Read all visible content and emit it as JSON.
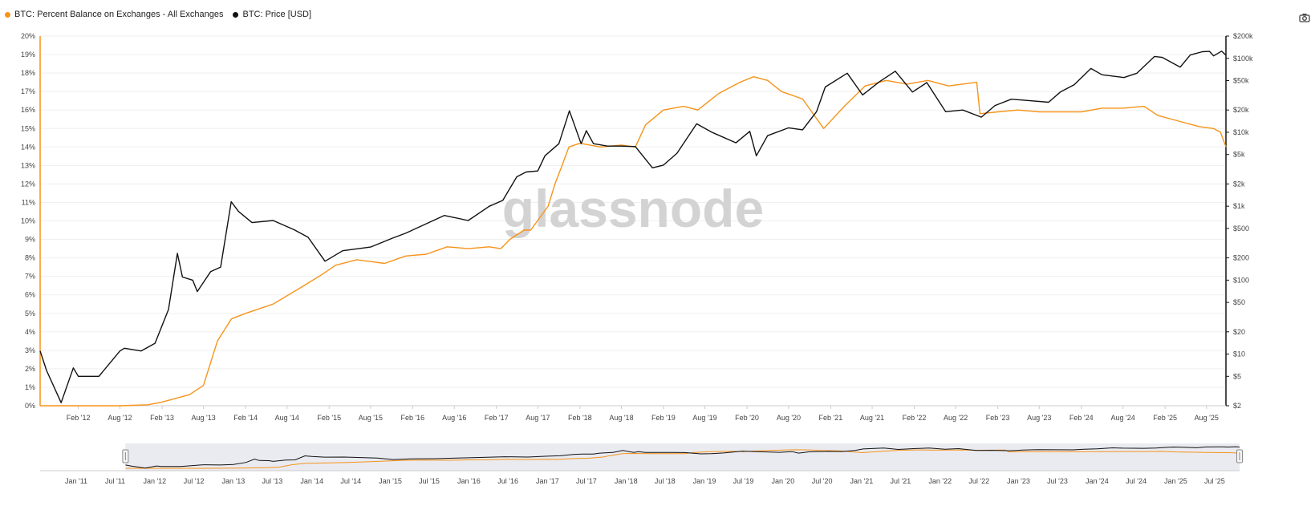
{
  "legend": {
    "series1_label": "BTC: Percent Balance on Exchanges - All Exchanges",
    "series2_label": "BTC: Price [USD]"
  },
  "watermark": "glassnode",
  "colors": {
    "balance": "#f7931a",
    "price": "#111111",
    "grid": "#efefef",
    "navigator_bg": "#e9ebf1"
  },
  "chart_data": {
    "type": "line",
    "title": "",
    "x_tick_labels": [
      "Feb '12",
      "Aug '12",
      "Feb '13",
      "Aug '13",
      "Feb '14",
      "Aug '14",
      "Feb '15",
      "Aug '15",
      "Feb '16",
      "Aug '16",
      "Feb '17",
      "Aug '17",
      "Feb '18",
      "Aug '18",
      "Feb '19",
      "Aug '19",
      "Feb '20",
      "Aug '20",
      "Feb '21",
      "Aug '21",
      "Feb '22",
      "Aug '22",
      "Feb '23",
      "Aug '23",
      "Feb '24",
      "Aug '24",
      "Feb '25",
      "Aug '25"
    ],
    "x_range": [
      "2011-08-18",
      "2025-10-25"
    ],
    "left_axis": {
      "label": "",
      "ylim": [
        0,
        20
      ],
      "tick_labels": [
        "0%",
        "1%",
        "2%",
        "3%",
        "4%",
        "5%",
        "6%",
        "7%",
        "8%",
        "9%",
        "10%",
        "11%",
        "12%",
        "13%",
        "14%",
        "15%",
        "16%",
        "17%",
        "18%",
        "19%",
        "20%"
      ]
    },
    "right_axis": {
      "label": "",
      "scale": "log",
      "ylim": [
        2,
        200000
      ],
      "tick_values": [
        2,
        5,
        10,
        20,
        50,
        100,
        200,
        500,
        1000,
        2000,
        5000,
        10000,
        20000,
        50000,
        100000,
        200000
      ],
      "tick_labels": [
        "$2",
        "$5",
        "$10",
        "$20",
        "$50",
        "$100",
        "$200",
        "$500",
        "$1k",
        "$2k",
        "$5k",
        "$10k",
        "$20k",
        "$50k",
        "$100k",
        "$200k"
      ]
    },
    "grid": true,
    "legend_position": "top-left",
    "series": [
      {
        "name": "BTC: Percent Balance on Exchanges - All Exchanges",
        "axis": "left",
        "color": "#f7931a",
        "x": [
          "2011-08-18",
          "2012-02-01",
          "2012-08-01",
          "2012-12-01",
          "2013-02-01",
          "2013-06-01",
          "2013-08-01",
          "2013-10-01",
          "2013-12-01",
          "2014-02-01",
          "2014-06-01",
          "2014-10-01",
          "2015-01-01",
          "2015-03-01",
          "2015-06-01",
          "2015-08-01",
          "2015-10-01",
          "2016-01-01",
          "2016-04-01",
          "2016-07-01",
          "2016-10-01",
          "2017-01-01",
          "2017-02-20",
          "2017-04-01",
          "2017-06-01",
          "2017-07-01",
          "2017-09-15",
          "2017-10-15",
          "2017-11-15",
          "2017-12-15",
          "2018-02-01",
          "2018-05-01",
          "2018-08-01",
          "2018-10-01",
          "2018-11-15",
          "2019-02-01",
          "2019-05-01",
          "2019-07-01",
          "2019-10-01",
          "2020-01-01",
          "2020-03-01",
          "2020-05-01",
          "2020-07-01",
          "2020-10-01",
          "2021-01-01",
          "2021-04-01",
          "2021-07-01",
          "2021-10-01",
          "2022-01-01",
          "2022-04-01",
          "2022-06-01",
          "2022-07-01",
          "2022-11-01",
          "2022-11-15",
          "2023-02-01",
          "2023-05-01",
          "2023-08-01",
          "2023-11-01",
          "2024-02-01",
          "2024-05-01",
          "2024-08-01",
          "2024-11-01",
          "2025-01-01",
          "2025-04-01",
          "2025-07-01",
          "2025-09-01",
          "2025-10-01",
          "2025-10-25"
        ],
        "y": [
          0.0,
          0.0,
          0.0,
          0.05,
          0.2,
          0.6,
          1.1,
          3.5,
          4.7,
          5.0,
          5.5,
          6.4,
          7.1,
          7.6,
          7.9,
          7.8,
          7.7,
          8.1,
          8.2,
          8.6,
          8.5,
          8.6,
          8.5,
          9.0,
          9.5,
          9.5,
          10.8,
          12.0,
          13.0,
          14.0,
          14.2,
          14.0,
          14.1,
          14.0,
          15.2,
          16.0,
          16.2,
          16.0,
          16.9,
          17.5,
          17.8,
          17.6,
          17.0,
          16.6,
          15.0,
          16.2,
          17.3,
          17.6,
          17.4,
          17.6,
          17.4,
          17.3,
          17.5,
          15.8,
          15.9,
          16.0,
          15.9,
          15.9,
          15.9,
          16.1,
          16.1,
          16.2,
          15.7,
          15.4,
          15.1,
          15.0,
          14.8,
          14.0
        ]
      },
      {
        "name": "BTC: Price [USD]",
        "axis": "right",
        "color": "#111111",
        "x": [
          "2011-08-18",
          "2011-09-15",
          "2011-11-18",
          "2012-01-10",
          "2012-02-01",
          "2012-05-01",
          "2012-08-01",
          "2012-08-20",
          "2012-11-01",
          "2013-01-01",
          "2013-03-01",
          "2013-04-09",
          "2013-05-01",
          "2013-06-15",
          "2013-07-05",
          "2013-09-01",
          "2013-10-15",
          "2013-11-30",
          "2014-01-01",
          "2014-03-01",
          "2014-06-01",
          "2014-09-01",
          "2014-11-01",
          "2015-01-14",
          "2015-04-01",
          "2015-08-01",
          "2015-11-05",
          "2016-01-01",
          "2016-06-18",
          "2016-10-01",
          "2017-01-01",
          "2017-03-01",
          "2017-05-01",
          "2017-06-11",
          "2017-08-01",
          "2017-09-01",
          "2017-11-01",
          "2017-12-17",
          "2018-02-06",
          "2018-03-01",
          "2018-04-01",
          "2018-06-01",
          "2018-08-01",
          "2018-10-01",
          "2018-12-15",
          "2019-02-01",
          "2019-04-01",
          "2019-06-26",
          "2019-09-01",
          "2019-12-15",
          "2020-02-13",
          "2020-03-13",
          "2020-05-01",
          "2020-08-01",
          "2020-10-01",
          "2020-12-01",
          "2021-01-08",
          "2021-04-14",
          "2021-06-20",
          "2021-09-01",
          "2021-11-10",
          "2022-01-24",
          "2022-03-28",
          "2022-06-18",
          "2022-09-01",
          "2022-11-21",
          "2023-01-20",
          "2023-04-01",
          "2023-09-11",
          "2023-11-01",
          "2024-01-01",
          "2024-03-14",
          "2024-05-01",
          "2024-08-05",
          "2024-10-01",
          "2024-12-17",
          "2025-01-20",
          "2025-04-08",
          "2025-05-22",
          "2025-07-14",
          "2025-08-14",
          "2025-09-01",
          "2025-10-06",
          "2025-10-25"
        ],
        "y": [
          11,
          6,
          2.2,
          6.5,
          5,
          5,
          11,
          12,
          11,
          14,
          40,
          230,
          110,
          100,
          70,
          130,
          150,
          1150,
          850,
          600,
          640,
          480,
          380,
          180,
          250,
          280,
          370,
          430,
          750,
          640,
          1000,
          1200,
          2500,
          2900,
          3000,
          4800,
          7000,
          19500,
          7000,
          10500,
          7000,
          6500,
          6500,
          6400,
          3300,
          3600,
          5200,
          13000,
          10000,
          7200,
          10300,
          4800,
          9000,
          11500,
          10800,
          19000,
          41000,
          63000,
          32000,
          48000,
          67000,
          35000,
          47000,
          19000,
          20000,
          16000,
          23000,
          28000,
          25500,
          35000,
          44000,
          73000,
          60000,
          55000,
          63000,
          106000,
          103000,
          76000,
          111000,
          123000,
          124000,
          108000,
          125000,
          110000
        ]
      }
    ],
    "navigator": {
      "x_tick_labels": [
        "Jan '11",
        "Jul '11",
        "Jan '12",
        "Jul '12",
        "Jan '13",
        "Jul '13",
        "Jan '14",
        "Jul '14",
        "Jan '15",
        "Jul '15",
        "Jan '16",
        "Jul '16",
        "Jan '17",
        "Jul '17",
        "Jan '18",
        "Jul '18",
        "Jan '19",
        "Jul '19",
        "Jan '20",
        "Jul '20",
        "Jan '21",
        "Jul '21",
        "Jan '22",
        "Jul '22",
        "Jan '23",
        "Jul '23",
        "Jan '24",
        "Jul '24",
        "Jan '25",
        "Jul '25"
      ],
      "x_range": [
        "2010-07-17",
        "2025-10-25"
      ],
      "selected_range": [
        "2011-08-18",
        "2025-10-25"
      ]
    }
  }
}
